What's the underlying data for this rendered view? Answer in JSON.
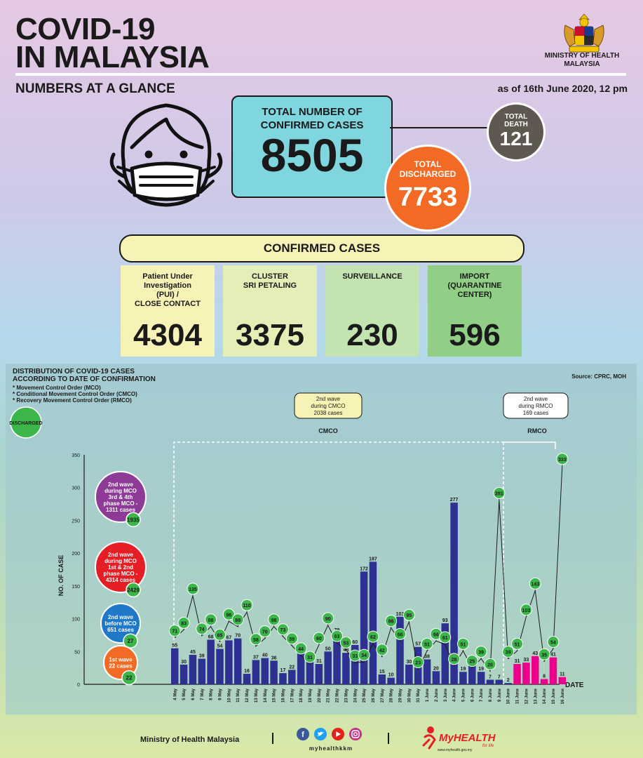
{
  "header": {
    "title_line1": "COVID-19",
    "title_line2": "IN MALAYSIA",
    "ministry_line1": "MINISTRY OF HEALTH",
    "ministry_line2": "MALAYSIA",
    "glance": "NUMBERS AT A GLANCE",
    "as_of": "as of 16th June 2020, 12 pm"
  },
  "totals": {
    "confirmed_label_1": "TOTAL NUMBER OF",
    "confirmed_label_2": "CONFIRMED CASES",
    "confirmed_value": "8505",
    "death_label_1": "TOTAL",
    "death_label_2": "DEATH",
    "death_value": "121",
    "discharged_label_1": "TOTAL",
    "discharged_label_2": "DISCHARGED",
    "discharged_value": "7733"
  },
  "confirmed_cases": {
    "heading": "CONFIRMED CASES",
    "cards": [
      {
        "l1": "Patient Under",
        "l2": "Investigation",
        "l3": "(PUI) /",
        "l4": "CLOSE CONTACT",
        "value": "4304",
        "color": "#f7f2b5"
      },
      {
        "l1": "CLUSTER",
        "l2": "SRI PETALING",
        "l3": "",
        "l4": "",
        "value": "3375",
        "color": "#e3efb6"
      },
      {
        "l1": "SURVEILLANCE",
        "l2": "",
        "l3": "",
        "l4": "",
        "value": "230",
        "color": "#c3e4b0"
      },
      {
        "l1": "IMPORT",
        "l2": "(QUARANTINE",
        "l3": "CENTER)",
        "l4": "",
        "value": "596",
        "color": "#90cf85"
      }
    ]
  },
  "chart_section": {
    "title_1": "DISTRIBUTION OF COVID-19 CASES",
    "title_2": "ACCORDING TO DATE OF CONFIRMATION",
    "note_1": "* Movement Control Order (MCO)",
    "note_2": "* Conditional Movement Control Order (CMCO)",
    "note_3": "* Recovery Movement Control Order (RMCO)",
    "source": "Source: CPRC, MOH"
  },
  "chart_data": {
    "type": "bar",
    "xlabel": "DATE",
    "ylabel": "NO. OF CASE",
    "ylim": [
      0,
      350
    ],
    "yticks": [
      0,
      50,
      100,
      150,
      200,
      250,
      300,
      350
    ],
    "categories": [
      "4 May",
      "5 May",
      "6 May",
      "7 May",
      "8 May",
      "9 May",
      "10 May",
      "11 May",
      "12 May",
      "13 May",
      "14 May",
      "15 May",
      "16 May",
      "17 May",
      "18 May",
      "19 May",
      "20 May",
      "21 May",
      "22 May",
      "23 May",
      "24 May",
      "25 May",
      "26 May",
      "27 May",
      "28 May",
      "29 May",
      "30 May",
      "31 May",
      "1 June",
      "2 June",
      "3 June",
      "4 June",
      "5 June",
      "6 June",
      "7 June",
      "8 June",
      "9 June",
      "10 June",
      "11 June",
      "12 June",
      "13 June",
      "14 June",
      "15 June",
      "16 June"
    ],
    "series": [
      {
        "values": [
          55,
          30,
          45,
          39,
          68,
          54,
          67,
          70,
          16,
          37,
          40,
          36,
          17,
          22,
          47,
          37,
          31,
          50,
          78,
          48,
          60,
          172,
          187,
          15,
          10,
          103,
          30,
          57,
          38,
          20,
          93,
          277,
          19,
          37,
          19,
          7,
          7,
          2,
          31,
          33,
          43,
          8,
          41,
          11
        ]
      },
      {
        "values": [
          71,
          83,
          135,
          74,
          88,
          65,
          96,
          88,
          110,
          58,
          70,
          88,
          73,
          59,
          44,
          31,
          60,
          90,
          63,
          53,
          33,
          34,
          62,
          42,
          86,
          66,
          95,
          23,
          51,
          66,
          61,
          28,
          51,
          25,
          39,
          20,
          281,
          39,
          51,
          103,
          143,
          35,
          54,
          333
        ]
      }
    ],
    "bar_colors": {
      "cmco": "#2e3192",
      "rmco": "#ec008c"
    },
    "line_color": "#1a1a1a",
    "marker_color": "#3cb54a",
    "phases": [
      {
        "label": "CMCO",
        "box_1": "2nd wave",
        "box_2": "during CMCO",
        "box_3": "2038 cases",
        "box_color": "#f7f2b5"
      },
      {
        "label": "RMCO",
        "box_1": "2nd wave",
        "box_2": "during RMCO",
        "box_3": "169 cases",
        "box_color": "#ffffff"
      }
    ],
    "legend": {
      "discharged_label": "DISCHARGED",
      "waves": [
        {
          "l1": "2nd wave",
          "l2": "during MCO",
          "l3": "3rd & 4th",
          "l4": "phase MCO -",
          "l5": "1311 cases",
          "discharged": "1935",
          "color": "#8e3b97"
        },
        {
          "l1": "2nd wave",
          "l2": "during MCO",
          "l3": "1st & 2nd",
          "l4": "phase MCO -",
          "l5": "4314 cases",
          "discharged": "2429",
          "color": "#e51e25"
        },
        {
          "l1": "2nd wave",
          "l2": "before MCO",
          "l3": "651 cases",
          "l4": "",
          "l5": "",
          "discharged": "27",
          "color": "#1f78c8"
        },
        {
          "l1": "1st wave",
          "l2": "22 cases",
          "l3": "",
          "l4": "",
          "l5": "",
          "discharged": "22",
          "color": "#f26a24"
        }
      ]
    }
  },
  "footer": {
    "ministry": "Ministry of Health Malaysia",
    "handle": "myhealthkkm",
    "brand": "MyHEALTH",
    "tagline": "for life",
    "url": "www.myhealth.gov.my"
  }
}
